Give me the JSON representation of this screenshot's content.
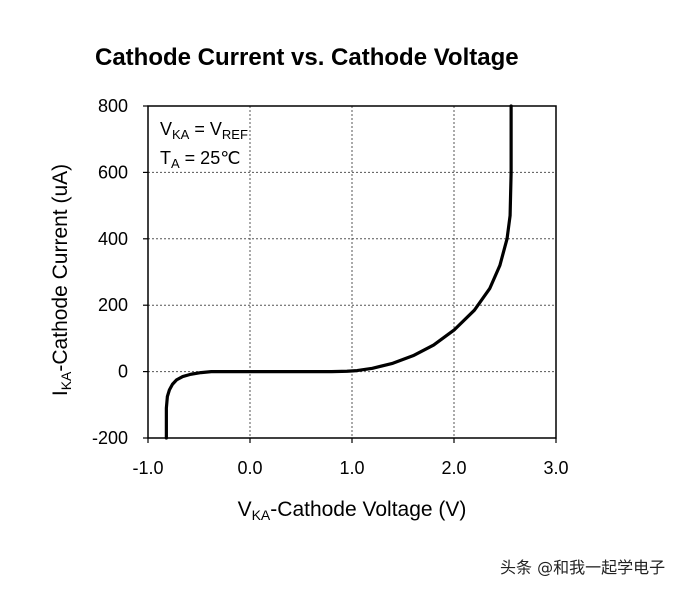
{
  "chart_data": {
    "type": "line",
    "title": "Cathode Current vs. Cathode Voltage",
    "xlabel": {
      "main": "V",
      "sub": "KA",
      "rest": "-Cathode Voltage (V)"
    },
    "ylabel": {
      "main": "I",
      "sub": "KA",
      "rest": "-Cathode Current (uA)"
    },
    "xlim": [
      -1.0,
      3.0
    ],
    "ylim": [
      -200,
      800
    ],
    "xticks": [
      -1.0,
      0.0,
      1.0,
      2.0,
      3.0
    ],
    "xtick_labels": [
      "-1.0",
      "0.0",
      "1.0",
      "2.0",
      "3.0"
    ],
    "yticks": [
      -200,
      0,
      200,
      400,
      600,
      800
    ],
    "ytick_labels": [
      "-200",
      "0",
      "200",
      "400",
      "600",
      "800"
    ],
    "grid": true,
    "grid_style": "dotted",
    "line_color": "#000000",
    "annotations": [
      {
        "parts": [
          [
            "V",
            ""
          ],
          [
            "KA",
            "sub"
          ],
          [
            " = V",
            ""
          ],
          [
            "REF",
            "sub"
          ]
        ]
      },
      {
        "parts": [
          [
            "T",
            ""
          ],
          [
            "A",
            "sub"
          ],
          [
            " = 25℃",
            ""
          ]
        ]
      }
    ],
    "series": [
      {
        "points": [
          [
            -0.82,
            -200
          ],
          [
            -0.82,
            -110
          ],
          [
            -0.81,
            -75
          ],
          [
            -0.79,
            -55
          ],
          [
            -0.76,
            -38
          ],
          [
            -0.72,
            -25
          ],
          [
            -0.66,
            -15
          ],
          [
            -0.58,
            -8
          ],
          [
            -0.48,
            -3
          ],
          [
            -0.38,
            0
          ],
          [
            0.0,
            0
          ],
          [
            0.5,
            0
          ],
          [
            0.8,
            0
          ],
          [
            0.95,
            1
          ],
          [
            1.05,
            3
          ],
          [
            1.2,
            10
          ],
          [
            1.4,
            25
          ],
          [
            1.6,
            48
          ],
          [
            1.8,
            80
          ],
          [
            2.0,
            125
          ],
          [
            2.2,
            185
          ],
          [
            2.35,
            250
          ],
          [
            2.45,
            320
          ],
          [
            2.52,
            400
          ],
          [
            2.55,
            470
          ],
          [
            2.56,
            600
          ],
          [
            2.56,
            800
          ]
        ]
      }
    ]
  },
  "watermark": "头条 @和我一起学电子"
}
